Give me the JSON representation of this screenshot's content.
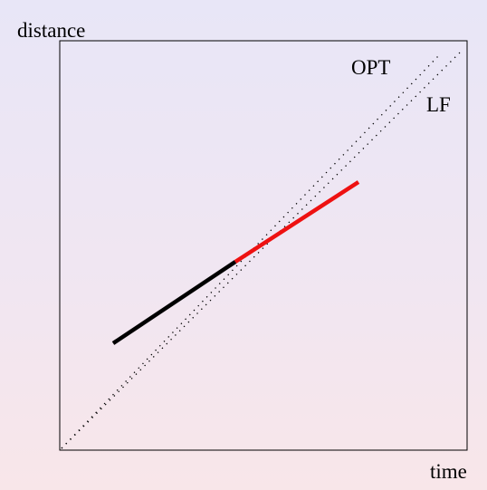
{
  "axes": {
    "y_label": "distance",
    "x_label": "time"
  },
  "lines": {
    "opt_label": "OPT",
    "lf_label": "LF"
  },
  "colors": {
    "frame": "#000000",
    "dotted": "#000000",
    "segment_black": "#000000",
    "segment_red": "#ee1111"
  }
}
